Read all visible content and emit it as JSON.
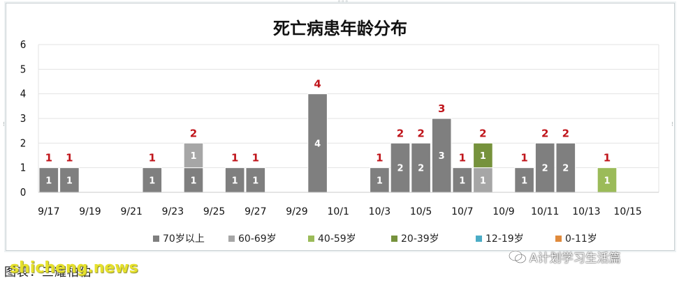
{
  "caption": "图表：三耀柏伯",
  "watermark": "shicheng.news",
  "wechat_label": "A计划学习生活篇",
  "colors": {
    "70岁以上": "#7f7f7f",
    "60-69岁": "#a6a6a6",
    "40-59岁": "#9bbb59",
    "20-39岁": "#76923c",
    "12-19岁": "#4bacc6",
    "0-11岁": "#e08a3c",
    "total_label": "#c0151b"
  },
  "chart_data": {
    "type": "bar",
    "stacked": true,
    "title": "死亡病患年龄分布",
    "ylim": [
      0,
      6
    ],
    "yticks": [
      0,
      1,
      2,
      3,
      4,
      5,
      6
    ],
    "grid": true,
    "legend_position": "bottom",
    "xtick_labels": [
      "9/17",
      "9/19",
      "9/21",
      "9/23",
      "9/25",
      "9/27",
      "9/29",
      "10/1",
      "10/3",
      "10/5",
      "10/7",
      "10/9",
      "10/11",
      "10/13",
      "10/15"
    ],
    "categories": [
      "9/17",
      "9/18",
      "9/19",
      "9/20",
      "9/21",
      "9/22",
      "9/23",
      "9/24",
      "9/25",
      "9/26",
      "9/27",
      "9/28",
      "9/29",
      "9/30",
      "10/1",
      "10/2",
      "10/3",
      "10/4",
      "10/5",
      "10/6",
      "10/7",
      "10/8",
      "10/9",
      "10/10",
      "10/11",
      "10/12",
      "10/13",
      "10/14",
      "10/15",
      "10/16"
    ],
    "series": [
      {
        "name": "70岁以上",
        "values": [
          1,
          1,
          0,
          0,
          0,
          1,
          0,
          1,
          0,
          1,
          1,
          0,
          0,
          4,
          0,
          0,
          1,
          2,
          2,
          3,
          1,
          0,
          0,
          1,
          2,
          2,
          0,
          0,
          0,
          0
        ]
      },
      {
        "name": "60-69岁",
        "values": [
          0,
          0,
          0,
          0,
          0,
          0,
          0,
          1,
          0,
          0,
          0,
          0,
          0,
          0,
          0,
          0,
          0,
          0,
          0,
          0,
          0,
          1,
          0,
          0,
          0,
          0,
          0,
          0,
          0,
          0
        ]
      },
      {
        "name": "40-59岁",
        "values": [
          0,
          0,
          0,
          0,
          0,
          0,
          0,
          0,
          0,
          0,
          0,
          0,
          0,
          0,
          0,
          0,
          0,
          0,
          0,
          0,
          0,
          0,
          0,
          0,
          0,
          0,
          0,
          1,
          0,
          0
        ]
      },
      {
        "name": "20-39岁",
        "values": [
          0,
          0,
          0,
          0,
          0,
          0,
          0,
          0,
          0,
          0,
          0,
          0,
          0,
          0,
          0,
          0,
          0,
          0,
          0,
          0,
          0,
          1,
          0,
          0,
          0,
          0,
          0,
          0,
          0,
          0
        ]
      },
      {
        "name": "12-19岁",
        "values": [
          0,
          0,
          0,
          0,
          0,
          0,
          0,
          0,
          0,
          0,
          0,
          0,
          0,
          0,
          0,
          0,
          0,
          0,
          0,
          0,
          0,
          0,
          0,
          0,
          0,
          0,
          0,
          0,
          0,
          0
        ]
      },
      {
        "name": "0-11岁",
        "values": [
          0,
          0,
          0,
          0,
          0,
          0,
          0,
          0,
          0,
          0,
          0,
          0,
          0,
          0,
          0,
          0,
          0,
          0,
          0,
          0,
          0,
          0,
          0,
          0,
          0,
          0,
          0,
          0,
          0,
          0
        ]
      }
    ],
    "totals": [
      1,
      1,
      0,
      0,
      0,
      1,
      0,
      2,
      0,
      1,
      1,
      0,
      0,
      4,
      0,
      0,
      1,
      2,
      2,
      3,
      1,
      2,
      0,
      1,
      2,
      2,
      0,
      1,
      0,
      0
    ]
  }
}
